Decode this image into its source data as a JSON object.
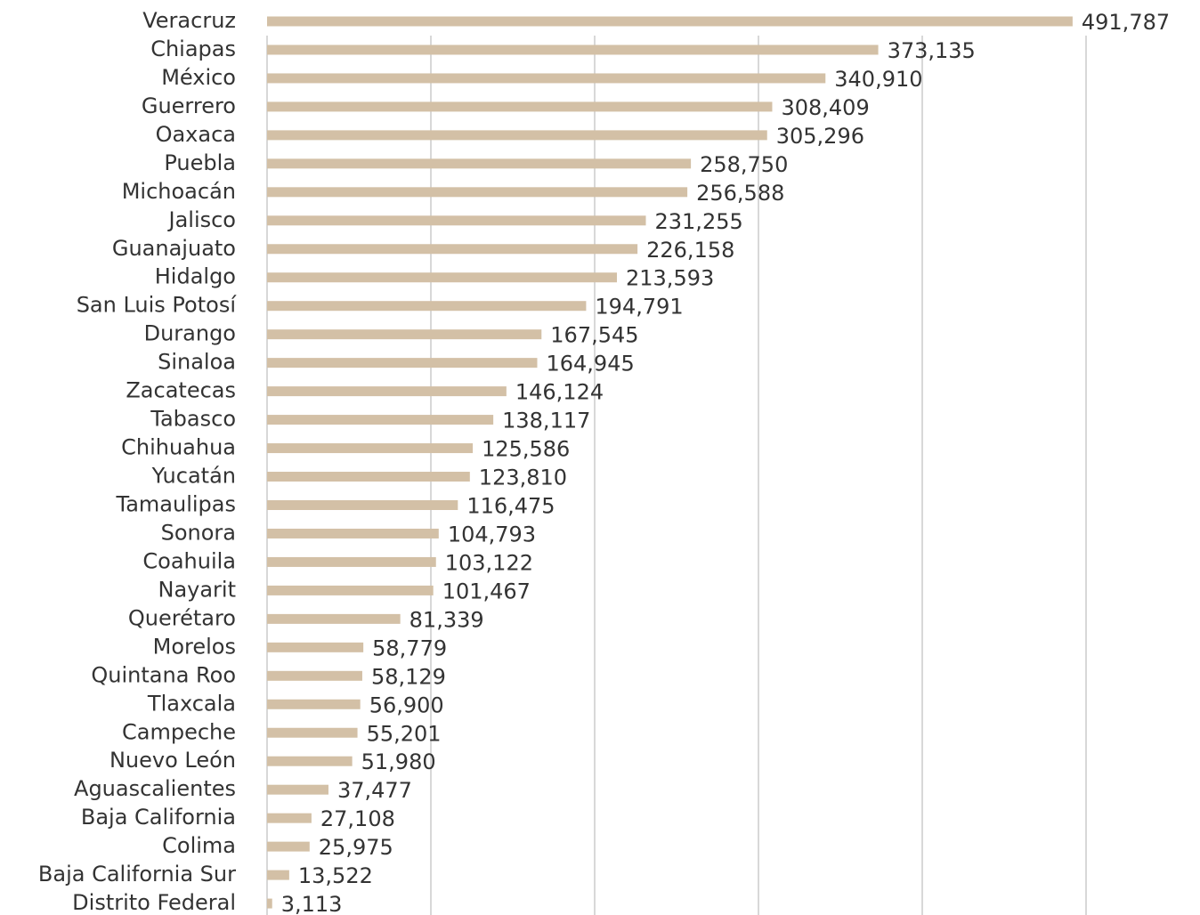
{
  "chart_data": {
    "type": "barh",
    "categories": [
      "Veracruz",
      "Chiapas",
      "México",
      "Guerrero",
      "Oaxaca",
      "Puebla",
      "Michoacán",
      "Jalisco",
      "Guanajuato",
      "Hidalgo",
      "San Luis Potosí",
      "Durango",
      "Sinaloa",
      "Zacatecas",
      "Tabasco",
      "Chihuahua",
      "Yucatán",
      "Tamaulipas",
      "Sonora",
      "Coahuila",
      "Nayarit",
      "Querétaro",
      "Morelos",
      "Quintana Roo",
      "Tlaxcala",
      "Campeche",
      "Nuevo León",
      "Aguascalientes",
      "Baja California",
      "Colima",
      "Baja California Sur",
      "Distrito Federal"
    ],
    "values": [
      491787,
      373135,
      340910,
      308409,
      305296,
      258750,
      256588,
      231255,
      226158,
      213593,
      194791,
      167545,
      164945,
      146124,
      138117,
      125586,
      123810,
      116475,
      104793,
      103122,
      101467,
      81339,
      58779,
      58129,
      56900,
      55201,
      51980,
      37477,
      27108,
      25975,
      13522,
      3113
    ],
    "value_labels": [
      "491,787",
      "373,135",
      "340,910",
      "308,409",
      "305,296",
      "258,750",
      "256,588",
      "231,255",
      "226,158",
      "213,593",
      "194,791",
      "167,545",
      "164,945",
      "146,124",
      "138,117",
      "125,586",
      "123,810",
      "116,475",
      "104,793",
      "103,122",
      "101,467",
      "81,339",
      "58,779",
      "58,129",
      "56,900",
      "55,201",
      "51,980",
      "37,477",
      "27,108",
      "25,975",
      "13,522",
      "3,113"
    ],
    "color": "#d3c0a6",
    "xlim": [
      0,
      500000
    ],
    "xticks": [
      0,
      100000,
      200000,
      300000,
      400000,
      500000
    ],
    "grid": true
  }
}
